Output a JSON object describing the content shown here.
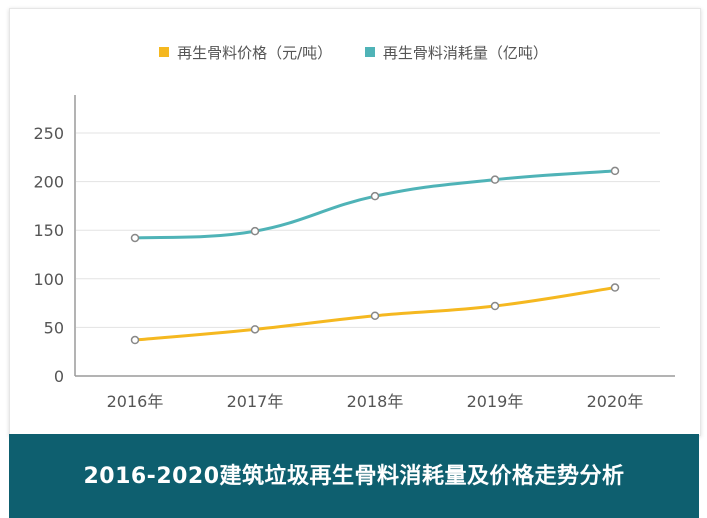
{
  "chart_data": {
    "type": "line",
    "categories": [
      "2016年",
      "2017年",
      "2018年",
      "2019年",
      "2020年"
    ],
    "series": [
      {
        "name": "再生骨料价格（元/吨）",
        "color": "#f5b820",
        "values": [
          37,
          48,
          62,
          72,
          91
        ]
      },
      {
        "name": "再生骨料消耗量（亿吨）",
        "color": "#4fb3b7",
        "values": [
          142,
          149,
          185,
          202,
          211
        ]
      }
    ],
    "title": "",
    "xlabel": "",
    "ylabel": "",
    "ylim": [
      0,
      250
    ],
    "yticks": [
      0,
      50,
      100,
      150,
      200,
      250
    ],
    "grid": "horizontal",
    "legend": "top"
  },
  "banner": {
    "title": "2016-2020建筑垃圾再生骨料消耗量及价格走势分析",
    "background": "#0e5f6f"
  }
}
